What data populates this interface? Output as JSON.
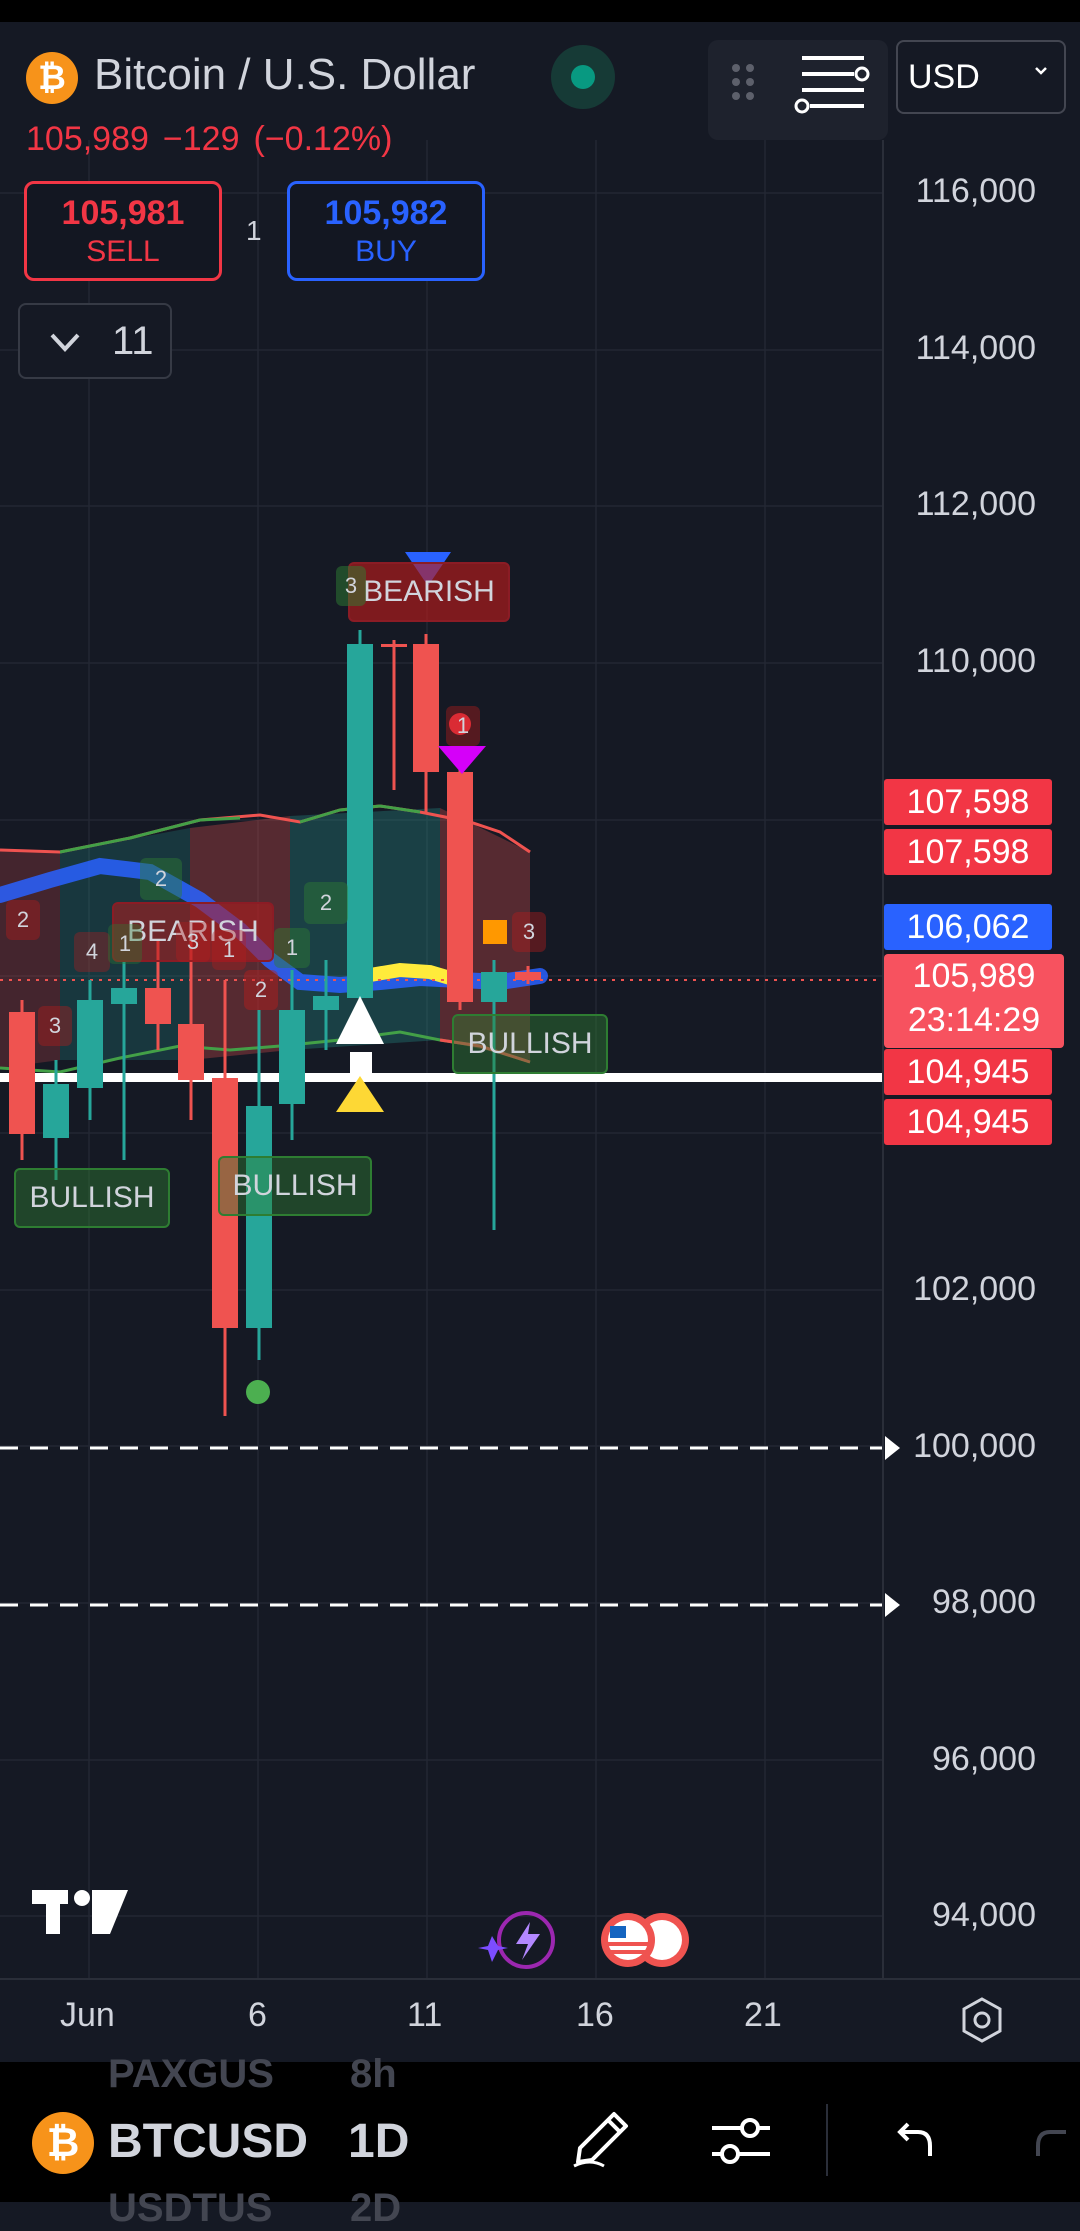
{
  "header": {
    "symbol_title": "Bitcoin / U.S. Dollar",
    "logo_glyph": "₿",
    "last_price": "105,989",
    "change": "−129",
    "change_pct": "(−0.12%)",
    "currency": "USD"
  },
  "trade": {
    "sell_price": "105,981",
    "sell_label": "SELL",
    "buy_price": "105,982",
    "buy_label": "BUY",
    "spread": "1"
  },
  "indicators": {
    "count": "11"
  },
  "chart_data": {
    "type": "candlestick",
    "price_axis": [
      "116,000",
      "114,000",
      "112,000",
      "110,000",
      "102,000",
      "100,000",
      "98,000",
      "96,000",
      "94,000"
    ],
    "time_axis": [
      "Jun",
      "6",
      "11",
      "16",
      "21"
    ],
    "tags": {
      "level_a1": "107,598",
      "level_a2": "107,598",
      "indicator_price": "106,062",
      "last_price": "105,989",
      "countdown": "23:14:29",
      "level_b1": "104,945",
      "level_b2": "104,945"
    },
    "signals": [
      "BEARISH",
      "BEARISH",
      "BULLISH",
      "BULLISH",
      "BULLISH"
    ],
    "counts": [
      "3",
      "1",
      "2",
      "2",
      "4",
      "1",
      "3",
      "1",
      "2",
      "1",
      "3",
      "2",
      "3"
    ],
    "colors": {
      "up": "#26a69a",
      "down": "#ef5350",
      "band": "#2962ff"
    }
  },
  "bottom": {
    "symbol": "BTCUSD",
    "interval": "1D",
    "ghost_1": "PAXGUS",
    "ghost_1_val": "8h",
    "ghost_2": "USDTUS",
    "ghost_2_val": "2D"
  },
  "icons": {
    "drag": "drag-handle-icon",
    "menu": "menu-sliders-icon",
    "settings": "settings-icon",
    "pen": "pen-icon",
    "sliders": "sliders-icon",
    "undo": "undo-icon",
    "redo": "redo-icon",
    "tradingview": "tradingview-logo-icon",
    "flash": "flash-icon",
    "flag": "us-flag-icon"
  }
}
